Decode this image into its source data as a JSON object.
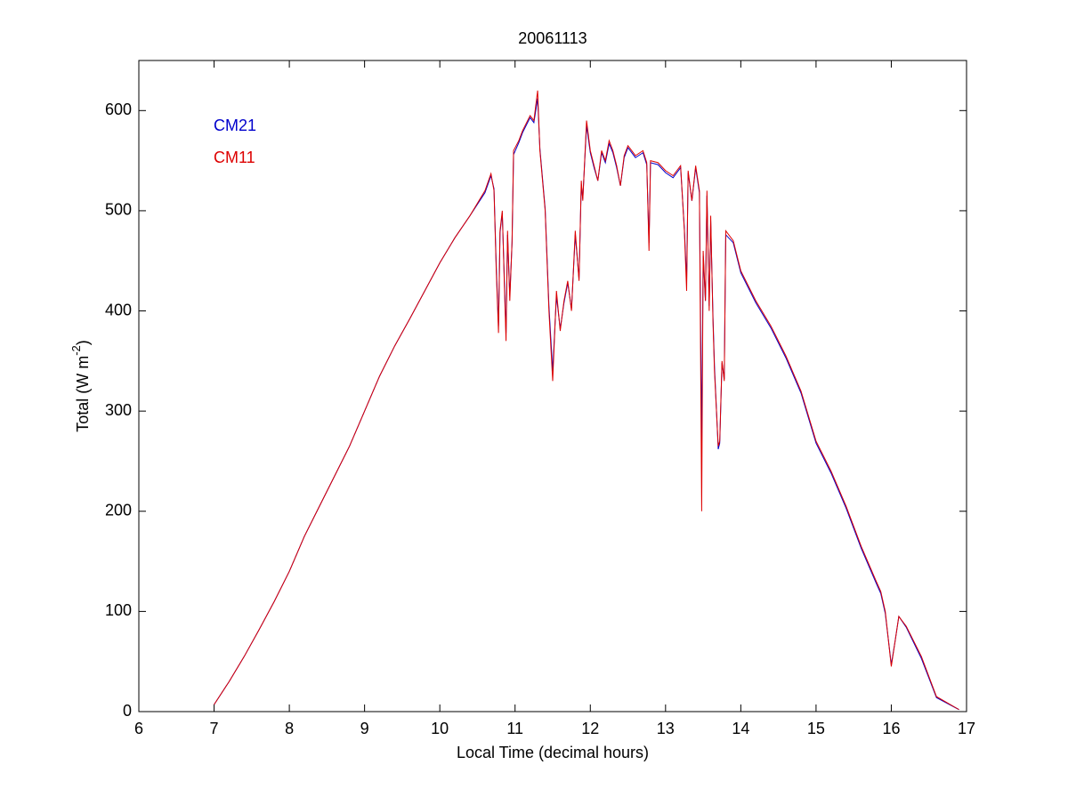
{
  "chart_data": {
    "type": "line",
    "title": "20061113",
    "xlabel": "Local Time (decimal hours)",
    "ylabel_parts": [
      "Total (W m",
      "-2",
      ")"
    ],
    "x": [
      7.0,
      7.2,
      7.4,
      7.6,
      7.8,
      8.0,
      8.2,
      8.4,
      8.6,
      8.8,
      9.0,
      9.2,
      9.4,
      9.6,
      9.8,
      10.0,
      10.2,
      10.4,
      10.6,
      10.68,
      10.72,
      10.75,
      10.78,
      10.8,
      10.83,
      10.86,
      10.88,
      10.9,
      10.93,
      10.96,
      10.98,
      11.05,
      11.1,
      11.2,
      11.25,
      11.3,
      11.33,
      11.4,
      11.45,
      11.5,
      11.55,
      11.6,
      11.65,
      11.7,
      11.75,
      11.8,
      11.85,
      11.88,
      11.9,
      11.95,
      12.0,
      12.05,
      12.1,
      12.15,
      12.2,
      12.25,
      12.3,
      12.35,
      12.4,
      12.45,
      12.5,
      12.55,
      12.6,
      12.7,
      12.75,
      12.78,
      12.8,
      12.9,
      13.0,
      13.1,
      13.2,
      13.25,
      13.28,
      13.3,
      13.35,
      13.4,
      13.45,
      13.48,
      13.5,
      13.53,
      13.55,
      13.58,
      13.6,
      13.63,
      13.65,
      13.7,
      13.72,
      13.75,
      13.78,
      13.8,
      13.9,
      14.0,
      14.2,
      14.4,
      14.6,
      14.8,
      15.0,
      15.2,
      15.4,
      15.6,
      15.8,
      15.86,
      15.92,
      16.0,
      16.05,
      16.1,
      16.2,
      16.4,
      16.6,
      16.9
    ],
    "series": [
      {
        "name": "CM21",
        "color": "#0000cc",
        "values": [
          7,
          30,
          55,
          82,
          110,
          140,
          175,
          205,
          235,
          265,
          300,
          335,
          365,
          392,
          420,
          448,
          473,
          495,
          518,
          535,
          522,
          445,
          385,
          478,
          498,
          425,
          378,
          476,
          415,
          468,
          556,
          568,
          578,
          593,
          588,
          612,
          562,
          502,
          405,
          340,
          415,
          382,
          408,
          428,
          402,
          476,
          432,
          526,
          512,
          585,
          558,
          543,
          530,
          558,
          548,
          567,
          558,
          543,
          525,
          553,
          563,
          558,
          553,
          558,
          546,
          468,
          548,
          546,
          538,
          533,
          543,
          482,
          430,
          538,
          510,
          543,
          518,
          270,
          455,
          410,
          515,
          405,
          490,
          395,
          345,
          262,
          268,
          348,
          332,
          476,
          468,
          438,
          408,
          383,
          353,
          318,
          268,
          238,
          203,
          163,
          128,
          118,
          98,
          47,
          70,
          95,
          84,
          53,
          14,
          2
        ]
      },
      {
        "name": "CM11",
        "color": "#dd0000",
        "values": [
          7,
          30,
          55,
          82,
          110,
          140,
          175,
          205,
          235,
          265,
          300,
          335,
          365,
          392,
          420,
          448,
          473,
          495,
          520,
          537,
          520,
          440,
          378,
          480,
          500,
          420,
          370,
          480,
          410,
          470,
          560,
          570,
          580,
          595,
          590,
          620,
          560,
          500,
          400,
          330,
          420,
          380,
          410,
          430,
          400,
          480,
          430,
          530,
          510,
          590,
          560,
          545,
          530,
          560,
          550,
          570,
          560,
          545,
          525,
          555,
          565,
          560,
          555,
          560,
          548,
          460,
          550,
          548,
          540,
          535,
          545,
          480,
          420,
          540,
          510,
          545,
          520,
          200,
          460,
          410,
          520,
          400,
          495,
          390,
          340,
          265,
          270,
          350,
          330,
          480,
          470,
          440,
          410,
          385,
          355,
          320,
          270,
          240,
          205,
          165,
          130,
          120,
          100,
          45,
          70,
          95,
          85,
          55,
          15,
          2
        ]
      }
    ],
    "xlim": [
      6,
      17
    ],
    "xticks": [
      6,
      7,
      8,
      9,
      10,
      11,
      12,
      13,
      14,
      15,
      16,
      17
    ],
    "ylim": [
      0,
      650
    ],
    "yticks": [
      0,
      100,
      200,
      300,
      400,
      500,
      600
    ],
    "grid": false,
    "legend": "upper left"
  }
}
